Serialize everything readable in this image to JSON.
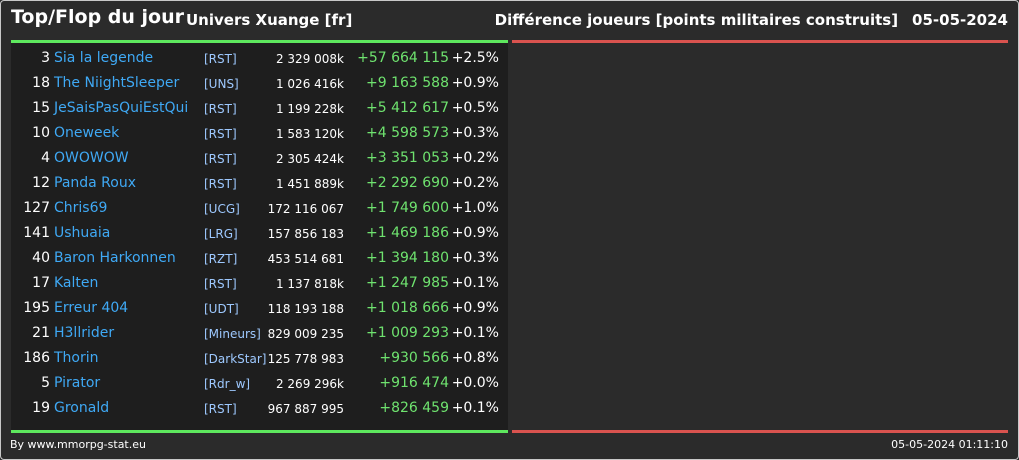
{
  "header": {
    "title": "Top/Flop du jour",
    "universe": "Univers Xuange [fr]",
    "metric": "Différence joueurs [points militaires construits]",
    "date": "05-05-2024"
  },
  "colors": {
    "top_bar": "#5ee85e",
    "flop_bar": "#d9534f",
    "name": "#3fa9f5",
    "gain": "#6fe36f"
  },
  "rows": [
    {
      "rank": "3",
      "name": "Sia la legende",
      "tag": "[RST]",
      "points": "2 329 008k",
      "diff": "+57 664 115",
      "pct": "+2.5%"
    },
    {
      "rank": "18",
      "name": "The NiightSleeper",
      "tag": "[UNS]",
      "points": "1 026 416k",
      "diff": "+9 163 588",
      "pct": "+0.9%"
    },
    {
      "rank": "15",
      "name": "JeSaisPasQuiEstQui",
      "tag": "[RST]",
      "points": "1 199 228k",
      "diff": "+5 412 617",
      "pct": "+0.5%"
    },
    {
      "rank": "10",
      "name": "Oneweek",
      "tag": "[RST]",
      "points": "1 583 120k",
      "diff": "+4 598 573",
      "pct": "+0.3%"
    },
    {
      "rank": "4",
      "name": "OWOWOW",
      "tag": "[RST]",
      "points": "2 305 424k",
      "diff": "+3 351 053",
      "pct": "+0.2%"
    },
    {
      "rank": "12",
      "name": "Panda Roux",
      "tag": "[RST]",
      "points": "1 451 889k",
      "diff": "+2 292 690",
      "pct": "+0.2%"
    },
    {
      "rank": "127",
      "name": "Chris69",
      "tag": "[UCG]",
      "points": "172 116 067",
      "diff": "+1 749 600",
      "pct": "+1.0%"
    },
    {
      "rank": "141",
      "name": "Ushuaia",
      "tag": "[LRG]",
      "points": "157 856 183",
      "diff": "+1 469 186",
      "pct": "+0.9%"
    },
    {
      "rank": "40",
      "name": "Baron Harkonnen",
      "tag": "[RZT]",
      "points": "453 514 681",
      "diff": "+1 394 180",
      "pct": "+0.3%"
    },
    {
      "rank": "17",
      "name": "Kalten",
      "tag": "[RST]",
      "points": "1 137 818k",
      "diff": "+1 247 985",
      "pct": "+0.1%"
    },
    {
      "rank": "195",
      "name": "Erreur 404",
      "tag": "[UDT]",
      "points": "118 193 188",
      "diff": "+1 018 666",
      "pct": "+0.9%"
    },
    {
      "rank": "21",
      "name": "H3llrider",
      "tag": "[Mineurs]",
      "points": "829 009 235",
      "diff": "+1 009 293",
      "pct": "+0.1%"
    },
    {
      "rank": "186",
      "name": "Thorin",
      "tag": "[DarkStar]",
      "points": "125 778 983",
      "diff": "+930 566",
      "pct": "+0.8%"
    },
    {
      "rank": "5",
      "name": "Pirator",
      "tag": "[Rdr_w]",
      "points": "2 269 296k",
      "diff": "+916 474",
      "pct": "+0.0%"
    },
    {
      "rank": "19",
      "name": "Gronald",
      "tag": "[RST]",
      "points": "967 887 995",
      "diff": "+826 459",
      "pct": "+0.1%"
    }
  ],
  "footer": {
    "source": "By www.mmorpg-stat.eu",
    "timestamp": "05-05-2024 01:11:10"
  }
}
